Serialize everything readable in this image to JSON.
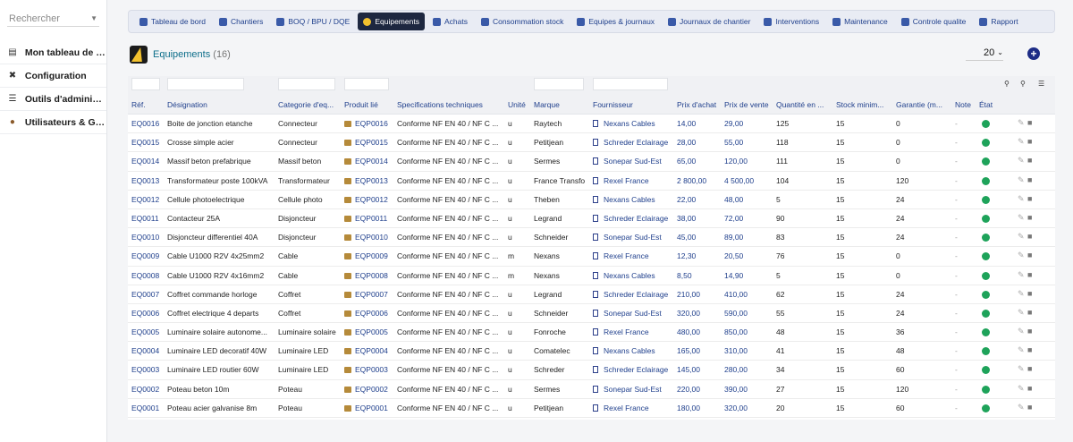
{
  "sidebar": {
    "search_placeholder": "Rechercher",
    "items": [
      {
        "label": "Mon tableau de bord",
        "icon": "chart-icon"
      },
      {
        "label": "Configuration",
        "icon": "tools-icon"
      },
      {
        "label": "Outils d'administrat...",
        "icon": "admin-icon"
      },
      {
        "label": "Utilisateurs & Grou...",
        "icon": "users-icon"
      }
    ]
  },
  "topnav": {
    "items": [
      {
        "label": "Tableau de bord",
        "icon": "dashboard-icon",
        "active": false
      },
      {
        "label": "Chantiers",
        "icon": "truck-icon",
        "active": false
      },
      {
        "label": "BOQ / BPU / DQE",
        "icon": "document-icon",
        "active": false
      },
      {
        "label": "Equipements",
        "icon": "lightbulb-icon",
        "active": true
      },
      {
        "label": "Achats",
        "icon": "cart-icon",
        "active": false
      },
      {
        "label": "Consommation stock",
        "icon": "stock-icon",
        "active": false
      },
      {
        "label": "Equipes & journaux",
        "icon": "team-icon",
        "active": false
      },
      {
        "label": "Journaux de chantier",
        "icon": "journal-icon",
        "active": false
      },
      {
        "label": "Interventions",
        "icon": "wrench-icon",
        "active": false
      },
      {
        "label": "Maintenance",
        "icon": "gears-icon",
        "active": false
      },
      {
        "label": "Controle qualite",
        "icon": "check-icon",
        "active": false
      },
      {
        "label": "Rapport",
        "icon": "report-icon",
        "active": false
      }
    ]
  },
  "page": {
    "title": "Equipements",
    "count": "(16)",
    "per_page": "20"
  },
  "colors": {
    "accent": "#1f3f8c",
    "title": "#0d6e8a",
    "status_green": "#1ea35a",
    "active_nav": "#1d2740"
  },
  "table": {
    "headers": [
      "Réf.",
      "Désignation",
      "Categorie d'eq...",
      "Produit lié",
      "Specifications techniques",
      "Unité",
      "Marque",
      "Fournisseur",
      "Prix d'achat",
      "Prix de vente",
      "Quantité en ...",
      "Stock minim...",
      "Garantie (m...",
      "Note",
      "État"
    ],
    "rows": [
      {
        "ref": "EQ0016",
        "designation": "Boite de jonction etanche",
        "categorie": "Connecteur",
        "produit": "EQP0016",
        "spec": "Conforme NF EN 40 / NF C ...",
        "unite": "u",
        "marque": "Raytech",
        "fournisseur": "Nexans Cables",
        "achat": "14,00",
        "vente": "29,00",
        "qte": "125",
        "stock": "15",
        "garantie": "0",
        "note": "-"
      },
      {
        "ref": "EQ0015",
        "designation": "Crosse simple acier",
        "categorie": "Connecteur",
        "produit": "EQP0015",
        "spec": "Conforme NF EN 40 / NF C ...",
        "unite": "u",
        "marque": "Petitjean",
        "fournisseur": "Schreder Eclairage",
        "achat": "28,00",
        "vente": "55,00",
        "qte": "118",
        "stock": "15",
        "garantie": "0",
        "note": "-"
      },
      {
        "ref": "EQ0014",
        "designation": "Massif beton prefabrique",
        "categorie": "Massif beton",
        "produit": "EQP0014",
        "spec": "Conforme NF EN 40 / NF C ...",
        "unite": "u",
        "marque": "Sermes",
        "fournisseur": "Sonepar Sud-Est",
        "achat": "65,00",
        "vente": "120,00",
        "qte": "111",
        "stock": "15",
        "garantie": "0",
        "note": "-"
      },
      {
        "ref": "EQ0013",
        "designation": "Transformateur poste 100kVA",
        "categorie": "Transformateur",
        "produit": "EQP0013",
        "spec": "Conforme NF EN 40 / NF C ...",
        "unite": "u",
        "marque": "France Transfo",
        "fournisseur": "Rexel France",
        "achat": "2 800,00",
        "vente": "4 500,00",
        "qte": "104",
        "stock": "15",
        "garantie": "120",
        "note": "-"
      },
      {
        "ref": "EQ0012",
        "designation": "Cellule photoelectrique",
        "categorie": "Cellule photo",
        "produit": "EQP0012",
        "spec": "Conforme NF EN 40 / NF C ...",
        "unite": "u",
        "marque": "Theben",
        "fournisseur": "Nexans Cables",
        "achat": "22,00",
        "vente": "48,00",
        "qte": "5",
        "stock": "15",
        "garantie": "24",
        "note": "-"
      },
      {
        "ref": "EQ0011",
        "designation": "Contacteur 25A",
        "categorie": "Disjoncteur",
        "produit": "EQP0011",
        "spec": "Conforme NF EN 40 / NF C ...",
        "unite": "u",
        "marque": "Legrand",
        "fournisseur": "Schreder Eclairage",
        "achat": "38,00",
        "vente": "72,00",
        "qte": "90",
        "stock": "15",
        "garantie": "24",
        "note": "-"
      },
      {
        "ref": "EQ0010",
        "designation": "Disjoncteur differentiel 40A",
        "categorie": "Disjoncteur",
        "produit": "EQP0010",
        "spec": "Conforme NF EN 40 / NF C ...",
        "unite": "u",
        "marque": "Schneider",
        "fournisseur": "Sonepar Sud-Est",
        "achat": "45,00",
        "vente": "89,00",
        "qte": "83",
        "stock": "15",
        "garantie": "24",
        "note": "-"
      },
      {
        "ref": "EQ0009",
        "designation": "Cable U1000 R2V 4x25mm2",
        "categorie": "Cable",
        "produit": "EQP0009",
        "spec": "Conforme NF EN 40 / NF C ...",
        "unite": "m",
        "marque": "Nexans",
        "fournisseur": "Rexel France",
        "achat": "12,30",
        "vente": "20,50",
        "qte": "76",
        "stock": "15",
        "garantie": "0",
        "note": "-"
      },
      {
        "ref": "EQ0008",
        "designation": "Cable U1000 R2V 4x16mm2",
        "categorie": "Cable",
        "produit": "EQP0008",
        "spec": "Conforme NF EN 40 / NF C ...",
        "unite": "m",
        "marque": "Nexans",
        "fournisseur": "Nexans Cables",
        "achat": "8,50",
        "vente": "14,90",
        "qte": "5",
        "stock": "15",
        "garantie": "0",
        "note": "-"
      },
      {
        "ref": "EQ0007",
        "designation": "Coffret commande horloge",
        "categorie": "Coffret",
        "produit": "EQP0007",
        "spec": "Conforme NF EN 40 / NF C ...",
        "unite": "u",
        "marque": "Legrand",
        "fournisseur": "Schreder Eclairage",
        "achat": "210,00",
        "vente": "410,00",
        "qte": "62",
        "stock": "15",
        "garantie": "24",
        "note": "-"
      },
      {
        "ref": "EQ0006",
        "designation": "Coffret electrique 4 departs",
        "categorie": "Coffret",
        "produit": "EQP0006",
        "spec": "Conforme NF EN 40 / NF C ...",
        "unite": "u",
        "marque": "Schneider",
        "fournisseur": "Sonepar Sud-Est",
        "achat": "320,00",
        "vente": "590,00",
        "qte": "55",
        "stock": "15",
        "garantie": "24",
        "note": "-"
      },
      {
        "ref": "EQ0005",
        "designation": "Luminaire solaire autonome...",
        "categorie": "Luminaire solaire",
        "produit": "EQP0005",
        "spec": "Conforme NF EN 40 / NF C ...",
        "unite": "u",
        "marque": "Fonroche",
        "fournisseur": "Rexel France",
        "achat": "480,00",
        "vente": "850,00",
        "qte": "48",
        "stock": "15",
        "garantie": "36",
        "note": "-"
      },
      {
        "ref": "EQ0004",
        "designation": "Luminaire LED decoratif 40W",
        "categorie": "Luminaire LED",
        "produit": "EQP0004",
        "spec": "Conforme NF EN 40 / NF C ...",
        "unite": "u",
        "marque": "Comatelec",
        "fournisseur": "Nexans Cables",
        "achat": "165,00",
        "vente": "310,00",
        "qte": "41",
        "stock": "15",
        "garantie": "48",
        "note": "-"
      },
      {
        "ref": "EQ0003",
        "designation": "Luminaire LED routier 60W",
        "categorie": "Luminaire LED",
        "produit": "EQP0003",
        "spec": "Conforme NF EN 40 / NF C ...",
        "unite": "u",
        "marque": "Schreder",
        "fournisseur": "Schreder Eclairage",
        "achat": "145,00",
        "vente": "280,00",
        "qte": "34",
        "stock": "15",
        "garantie": "60",
        "note": "-"
      },
      {
        "ref": "EQ0002",
        "designation": "Poteau beton 10m",
        "categorie": "Poteau",
        "produit": "EQP0002",
        "spec": "Conforme NF EN 40 / NF C ...",
        "unite": "u",
        "marque": "Sermes",
        "fournisseur": "Sonepar Sud-Est",
        "achat": "220,00",
        "vente": "390,00",
        "qte": "27",
        "stock": "15",
        "garantie": "120",
        "note": "-"
      },
      {
        "ref": "EQ0001",
        "designation": "Poteau acier galvanise 8m",
        "categorie": "Poteau",
        "produit": "EQP0001",
        "spec": "Conforme NF EN 40 / NF C ...",
        "unite": "u",
        "marque": "Petitjean",
        "fournisseur": "Rexel France",
        "achat": "180,00",
        "vente": "320,00",
        "qte": "20",
        "stock": "15",
        "garantie": "60",
        "note": "-"
      }
    ]
  }
}
